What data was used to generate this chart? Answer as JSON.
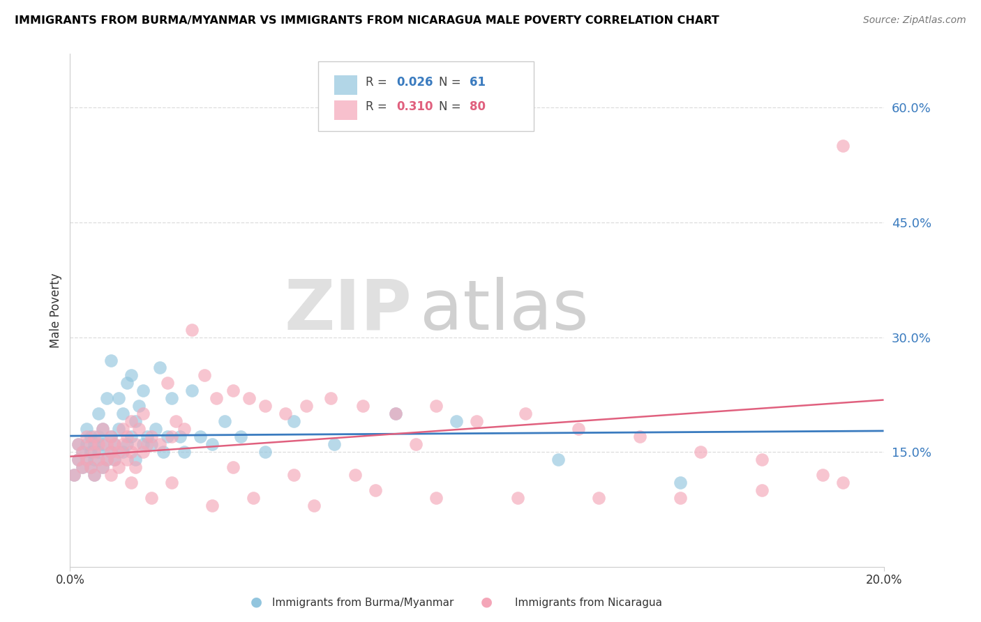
{
  "title": "IMMIGRANTS FROM BURMA/MYANMAR VS IMMIGRANTS FROM NICARAGUA MALE POVERTY CORRELATION CHART",
  "source": "Source: ZipAtlas.com",
  "ylabel": "Male Poverty",
  "ytick_labels": [
    "60.0%",
    "45.0%",
    "30.0%",
    "15.0%"
  ],
  "ytick_values": [
    0.6,
    0.45,
    0.3,
    0.15
  ],
  "xlim": [
    0.0,
    0.2
  ],
  "ylim": [
    0.0,
    0.67
  ],
  "legend_blue_R": "0.026",
  "legend_blue_N": "61",
  "legend_pink_R": "0.310",
  "legend_pink_N": "80",
  "blue_color": "#92c5de",
  "pink_color": "#f4a6b8",
  "line_blue_color": "#3a7bbf",
  "line_pink_color": "#e0607e",
  "watermark_zip": "ZIP",
  "watermark_atlas": "atlas",
  "blue_x": [
    0.001,
    0.002,
    0.002,
    0.003,
    0.003,
    0.004,
    0.004,
    0.004,
    0.005,
    0.005,
    0.005,
    0.006,
    0.006,
    0.006,
    0.007,
    0.007,
    0.007,
    0.008,
    0.008,
    0.008,
    0.009,
    0.009,
    0.01,
    0.01,
    0.01,
    0.011,
    0.011,
    0.012,
    0.012,
    0.013,
    0.013,
    0.014,
    0.014,
    0.015,
    0.015,
    0.016,
    0.016,
    0.017,
    0.018,
    0.018,
    0.019,
    0.02,
    0.021,
    0.022,
    0.023,
    0.024,
    0.025,
    0.027,
    0.028,
    0.03,
    0.032,
    0.035,
    0.038,
    0.042,
    0.048,
    0.055,
    0.065,
    0.08,
    0.095,
    0.12,
    0.15
  ],
  "blue_y": [
    0.12,
    0.14,
    0.16,
    0.13,
    0.15,
    0.14,
    0.16,
    0.18,
    0.13,
    0.15,
    0.17,
    0.12,
    0.14,
    0.16,
    0.15,
    0.17,
    0.2,
    0.13,
    0.16,
    0.18,
    0.14,
    0.22,
    0.15,
    0.17,
    0.27,
    0.14,
    0.16,
    0.18,
    0.22,
    0.15,
    0.2,
    0.16,
    0.24,
    0.17,
    0.25,
    0.14,
    0.19,
    0.21,
    0.16,
    0.23,
    0.17,
    0.16,
    0.18,
    0.26,
    0.15,
    0.17,
    0.22,
    0.17,
    0.15,
    0.23,
    0.17,
    0.16,
    0.19,
    0.17,
    0.15,
    0.19,
    0.16,
    0.2,
    0.19,
    0.14,
    0.11
  ],
  "pink_x": [
    0.001,
    0.002,
    0.002,
    0.003,
    0.003,
    0.004,
    0.004,
    0.005,
    0.005,
    0.006,
    0.006,
    0.006,
    0.007,
    0.007,
    0.008,
    0.008,
    0.009,
    0.009,
    0.01,
    0.01,
    0.011,
    0.011,
    0.012,
    0.012,
    0.013,
    0.013,
    0.014,
    0.014,
    0.015,
    0.015,
    0.016,
    0.016,
    0.017,
    0.018,
    0.018,
    0.019,
    0.02,
    0.022,
    0.024,
    0.026,
    0.028,
    0.03,
    0.033,
    0.036,
    0.04,
    0.044,
    0.048,
    0.053,
    0.058,
    0.064,
    0.072,
    0.08,
    0.09,
    0.1,
    0.112,
    0.125,
    0.14,
    0.155,
    0.17,
    0.185,
    0.01,
    0.015,
    0.02,
    0.025,
    0.035,
    0.045,
    0.06,
    0.075,
    0.09,
    0.11,
    0.13,
    0.15,
    0.17,
    0.19,
    0.025,
    0.04,
    0.055,
    0.07,
    0.085,
    0.19
  ],
  "pink_y": [
    0.12,
    0.14,
    0.16,
    0.13,
    0.15,
    0.14,
    0.17,
    0.13,
    0.16,
    0.12,
    0.15,
    0.17,
    0.14,
    0.16,
    0.13,
    0.18,
    0.14,
    0.16,
    0.15,
    0.17,
    0.14,
    0.16,
    0.13,
    0.15,
    0.16,
    0.18,
    0.14,
    0.17,
    0.15,
    0.19,
    0.13,
    0.16,
    0.18,
    0.15,
    0.2,
    0.16,
    0.17,
    0.16,
    0.24,
    0.19,
    0.18,
    0.31,
    0.25,
    0.22,
    0.23,
    0.22,
    0.21,
    0.2,
    0.21,
    0.22,
    0.21,
    0.2,
    0.21,
    0.19,
    0.2,
    0.18,
    0.17,
    0.15,
    0.14,
    0.12,
    0.12,
    0.11,
    0.09,
    0.11,
    0.08,
    0.09,
    0.08,
    0.1,
    0.09,
    0.09,
    0.09,
    0.09,
    0.1,
    0.55,
    0.17,
    0.13,
    0.12,
    0.12,
    0.16,
    0.11
  ]
}
